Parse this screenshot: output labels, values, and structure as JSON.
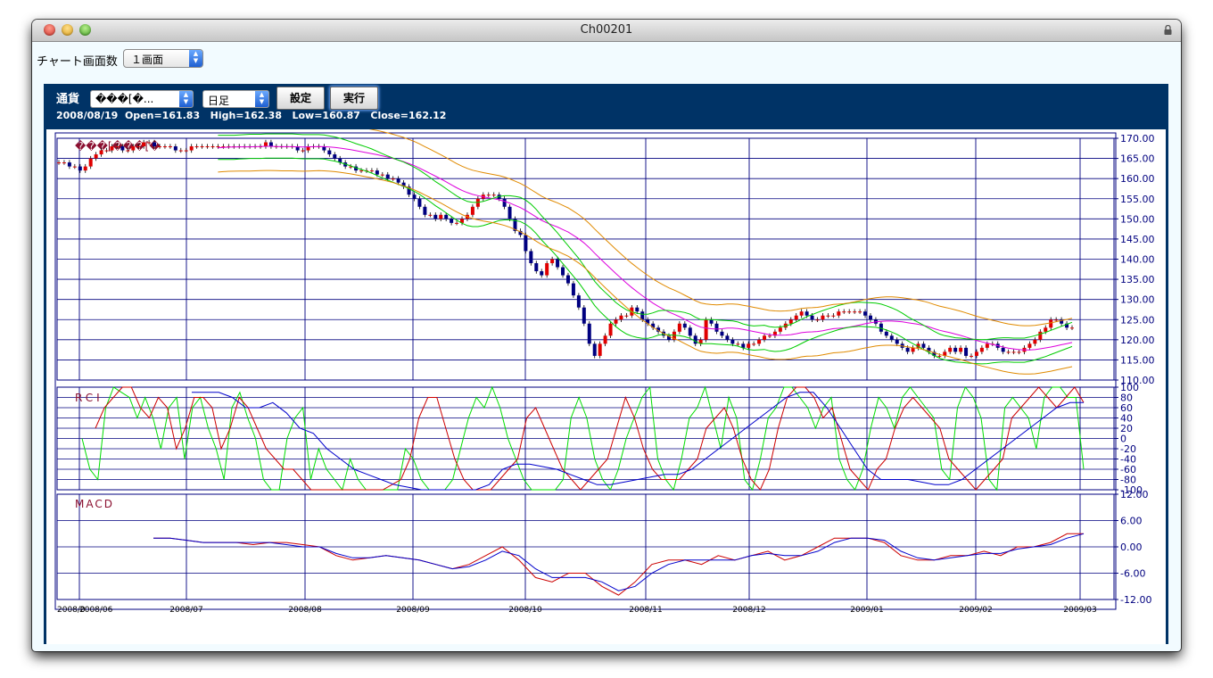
{
  "window": {
    "title": "Ch00201"
  },
  "toolbar": {
    "count_label": "チャート画面数",
    "count_value": "１画面"
  },
  "panel": {
    "symbol_label": "通貨",
    "symbol_value": "���[�...",
    "period_value": "日足",
    "set_button": "設定",
    "run_button": "実行",
    "info_date": "2008/08/19",
    "info_open": "Open=161.83",
    "info_high": "High=162.38",
    "info_low": "Low=160.87",
    "info_close": "Close=162.12"
  },
  "colors": {
    "panel_bg": "#003366",
    "grid": "#00007f",
    "up": "#e00000",
    "down": "#000080",
    "rci_fast": "#00dd00",
    "rci_slow": "#cc0000",
    "rci_long": "#0000cc",
    "macd": "#cc0000",
    "signal": "#0000cc"
  },
  "icons": {
    "lock": "lock-icon",
    "stepper": "up-down-stepper-icon"
  },
  "chart_data": [
    {
      "type": "candlestick",
      "title": "",
      "watermark": "���[���[�",
      "ylim": [
        110,
        170
      ],
      "yticks": [
        "170.00",
        "165.00",
        "160.00",
        "155.00",
        "150.00",
        "145.00",
        "140.00",
        "135.00",
        "130.00",
        "125.00",
        "120.00",
        "115.00",
        "110.00"
      ],
      "x_labels": [
        "2008/06",
        "2008/07",
        "2008/08",
        "2008/09",
        "2008/10",
        "2008/11",
        "2008/12",
        "2009/01",
        "2009/02",
        "2009/03"
      ],
      "x_label_first": "2008/0",
      "x_label_first_overlap": "2008/06",
      "close_series": [
        164,
        164,
        163,
        163,
        162,
        163,
        165,
        166,
        167,
        167,
        168,
        168,
        167,
        167,
        168,
        168,
        169,
        169,
        168,
        168,
        168,
        168,
        167,
        167,
        167,
        168,
        168,
        168,
        168,
        168,
        168,
        168,
        168,
        168,
        168,
        168,
        168,
        168,
        168,
        169,
        168,
        168,
        168,
        168,
        168,
        167,
        167,
        168,
        168,
        168,
        167,
        166,
        165,
        164,
        163,
        163,
        162,
        162,
        162,
        162,
        161,
        161,
        160,
        160,
        159,
        158,
        156,
        155,
        153,
        151,
        151,
        150,
        151,
        150,
        149,
        149,
        150,
        151,
        153,
        155,
        156,
        156,
        156,
        155,
        153,
        150,
        147,
        146,
        142,
        139,
        137,
        136,
        139,
        140,
        138,
        136,
        134,
        131,
        128,
        124,
        119,
        116,
        119,
        121,
        124,
        125,
        126,
        126,
        128,
        127,
        125,
        124,
        123,
        122,
        121,
        120,
        122,
        124,
        123,
        121,
        119,
        120,
        125,
        124,
        122,
        121,
        120,
        119,
        119,
        118,
        119,
        119,
        120,
        121,
        121,
        122,
        123,
        124,
        125,
        126,
        127,
        126,
        125,
        125,
        126,
        126,
        126,
        127,
        127,
        127,
        127,
        127,
        126,
        125,
        124,
        122,
        121,
        120,
        119,
        118,
        117,
        118,
        119,
        118,
        117,
        116,
        116,
        117,
        118,
        117,
        118,
        116,
        116,
        117,
        118,
        119,
        119,
        118,
        117,
        117,
        117,
        117,
        118,
        119,
        120,
        122,
        123,
        125,
        125,
        124,
        123,
        123
      ],
      "bands": [
        "ma-orange",
        "ma-green",
        "ma-magenta"
      ]
    },
    {
      "type": "line",
      "title": "RCI",
      "ylim": [
        -100,
        100
      ],
      "yticks": [
        "100",
        "80",
        "60",
        "40",
        "20",
        "0",
        "-20",
        "-40",
        "-60",
        "-80",
        "-100"
      ],
      "series": [
        {
          "name": "",
          "values": [
            0,
            -60,
            -80,
            60,
            100,
            90,
            80,
            40,
            80,
            40,
            -20,
            60,
            80,
            -40,
            60,
            80,
            20,
            -20,
            -80,
            60,
            90,
            40,
            0,
            -80,
            -100,
            -100,
            0,
            40,
            60,
            -80,
            -20,
            -60,
            -80,
            -100,
            -40,
            -80,
            -100,
            -100,
            -100,
            -100,
            -100,
            -20,
            -40,
            -80,
            -100,
            -100,
            -100,
            -80,
            -20,
            40,
            80,
            60,
            100,
            60,
            0,
            -40,
            -80,
            -100,
            -100,
            -100,
            -100,
            -80,
            40,
            80,
            40,
            -40,
            -80,
            -100,
            -60,
            0,
            40,
            80,
            100,
            -40,
            -80,
            -100,
            -40,
            40,
            60,
            100,
            40,
            -20,
            80,
            40,
            -80,
            -100,
            -40,
            40,
            60,
            100,
            100,
            80,
            60,
            20,
            60,
            80,
            -40,
            -80,
            -100,
            -60,
            20,
            80,
            60,
            20,
            80,
            100,
            80,
            60,
            40,
            -60,
            -80,
            60,
            100,
            80,
            40,
            -80,
            -100,
            60,
            80,
            60,
            40,
            -20,
            80,
            100,
            100,
            80,
            80,
            -60
          ]
        },
        {
          "name": "",
          "values": [
            20,
            60,
            80,
            100,
            100,
            60,
            40,
            80,
            60,
            -20,
            20,
            80,
            80,
            60,
            -20,
            20,
            80,
            60,
            20,
            -20,
            -40,
            -60,
            -60,
            -80,
            -100,
            -100,
            -100,
            -100,
            -100,
            -100,
            -100,
            -100,
            -100,
            -90,
            -80,
            -40,
            40,
            80,
            80,
            20,
            -40,
            -80,
            -100,
            -100,
            -100,
            -80,
            -60,
            -40,
            40,
            60,
            20,
            -20,
            -60,
            -80,
            -100,
            -80,
            -60,
            -40,
            20,
            80,
            40,
            -20,
            -60,
            -80,
            -80,
            -80,
            -60,
            -40,
            20,
            40,
            60,
            20,
            -40,
            -80,
            -100,
            -60,
            20,
            80,
            100,
            100,
            80,
            40,
            60,
            0,
            -60,
            -80,
            -100,
            -60,
            -40,
            20,
            60,
            80,
            60,
            40,
            20,
            -40,
            -60,
            -80,
            -100,
            -80,
            -60,
            -40,
            40,
            60,
            80,
            100,
            80,
            60,
            80,
            100,
            70
          ]
        },
        {
          "name": "",
          "values": [
            90,
            90,
            90,
            80,
            60,
            60,
            70,
            50,
            20,
            10,
            -20,
            -40,
            -60,
            -70,
            -80,
            -90,
            -95,
            -100,
            -100,
            -100,
            -100,
            -100,
            -90,
            -60,
            -50,
            -50,
            -55,
            -60,
            -70,
            -80,
            -90,
            -90,
            -85,
            -80,
            -75,
            -70,
            -70,
            -60,
            -40,
            -20,
            0,
            20,
            40,
            60,
            80,
            90,
            90,
            60,
            20,
            -20,
            -60,
            -80,
            -80,
            -80,
            -85,
            -90,
            -90,
            -80,
            -60,
            -40,
            -20,
            0,
            20,
            40,
            60,
            70,
            70
          ]
        }
      ]
    },
    {
      "type": "line",
      "title": "MACD",
      "ylim": [
        -12,
        12
      ],
      "yticks": [
        "12.00",
        "6.00",
        "0.00",
        "-6.00",
        "-12.00"
      ],
      "series": [
        {
          "name": "",
          "values": [
            2,
            2,
            1.5,
            1,
            1,
            1,
            0.5,
            1,
            1,
            0.5,
            0,
            -2,
            -3,
            -2.5,
            -2,
            -2.5,
            -3,
            -4,
            -5,
            -4,
            -2,
            0,
            -3,
            -7,
            -8,
            -6,
            -6,
            -9,
            -11,
            -8,
            -4,
            -3,
            -3,
            -4,
            -2,
            -3,
            -2,
            -1,
            -3,
            -2,
            0,
            2,
            2,
            2,
            1,
            -2,
            -3,
            -3,
            -2,
            -2,
            -1,
            -2,
            0,
            0,
            1,
            3,
            3
          ]
        },
        {
          "name": "",
          "values": [
            2,
            2,
            1.5,
            1,
            1,
            1,
            1,
            1,
            0.5,
            0,
            0,
            -1.5,
            -2.5,
            -2.5,
            -2,
            -2.5,
            -3,
            -4,
            -5,
            -4.5,
            -3,
            -1,
            -2,
            -5,
            -7,
            -7,
            -7,
            -8,
            -10,
            -9,
            -6,
            -4,
            -3,
            -3,
            -3,
            -3,
            -2,
            -1.5,
            -2,
            -2,
            -1,
            1,
            2,
            2,
            1.5,
            -1,
            -2.5,
            -3,
            -2.5,
            -2,
            -1.5,
            -1.5,
            -0.5,
            0,
            0.5,
            2,
            3
          ]
        }
      ]
    }
  ]
}
